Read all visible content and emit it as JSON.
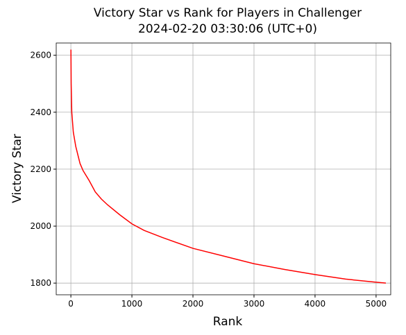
{
  "chart_data": {
    "type": "line",
    "title": [
      "Victory Star vs Rank for Players in Challenger",
      "2024-02-20 03:30:06 (UTC+0)"
    ],
    "xlabel": "Rank",
    "ylabel": "Victory Star",
    "x": [
      1,
      5,
      15,
      40,
      80,
      150,
      200,
      300,
      400,
      500,
      600,
      800,
      1000,
      1200,
      1500,
      2000,
      2500,
      3000,
      3500,
      4000,
      4500,
      5000,
      5160
    ],
    "series": [
      {
        "name": "Victory Star",
        "color": "#ff0000",
        "values": [
          2620,
          2500,
          2400,
          2330,
          2280,
          2220,
          2195,
          2160,
          2120,
          2095,
          2075,
          2040,
          2008,
          1985,
          1960,
          1922,
          1895,
          1868,
          1848,
          1830,
          1814,
          1803,
          1800
        ]
      }
    ],
    "xlim": [
      -240,
      5240
    ],
    "ylim": [
      1759,
      2643
    ],
    "xticks": [
      0,
      1000,
      2000,
      3000,
      4000,
      5000
    ],
    "yticks": [
      1800,
      2000,
      2200,
      2400,
      2600
    ],
    "grid": true
  }
}
